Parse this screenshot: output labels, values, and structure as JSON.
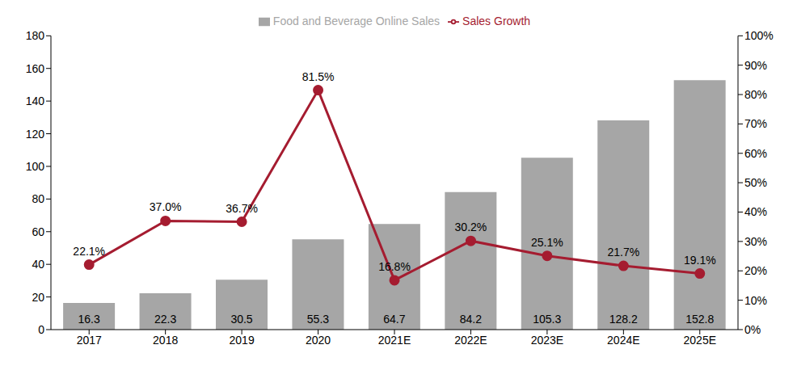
{
  "chart_data": {
    "type": "bar",
    "categories": [
      "2017",
      "2018",
      "2019",
      "2020",
      "2021E",
      "2022E",
      "2023E",
      "2024E",
      "2025E"
    ],
    "series": [
      {
        "name": "Food and Beverage Online Sales",
        "type": "bar",
        "color": "#a6a6a6",
        "values": [
          16.3,
          22.3,
          30.5,
          55.3,
          64.7,
          84.2,
          105.3,
          128.2,
          152.8
        ]
      },
      {
        "name": "Sales Growth",
        "type": "line",
        "color": "#a51c30",
        "marker": "circle",
        "axis": "y2",
        "values": [
          22.1,
          37.0,
          36.7,
          81.5,
          16.8,
          30.2,
          25.1,
          21.7,
          19.1
        ],
        "value_labels": [
          "22.1%",
          "37.0%",
          "36.7%",
          "81.5%",
          "16.8%",
          "30.2%",
          "25.1%",
          "21.7%",
          "19.1%"
        ]
      }
    ],
    "ylim": [
      0,
      180
    ],
    "yticks": [
      0,
      20,
      40,
      60,
      80,
      100,
      120,
      140,
      160,
      180
    ],
    "y2lim": [
      0,
      100
    ],
    "y2ticks": [
      {
        "value": 0,
        "label": "0%"
      },
      {
        "value": 10,
        "label": "10%"
      },
      {
        "value": 20,
        "label": "20%"
      },
      {
        "value": 30,
        "label": "30%"
      },
      {
        "value": 40,
        "label": "40%"
      },
      {
        "value": 50,
        "label": "50%"
      },
      {
        "value": 60,
        "label": "60%"
      },
      {
        "value": 70,
        "label": "70%"
      },
      {
        "value": 80,
        "label": "80%"
      },
      {
        "value": 90,
        "label": "90%"
      },
      {
        "value": 100,
        "label": "100%"
      }
    ],
    "grid": false,
    "data_labels": true,
    "legend": "top"
  }
}
